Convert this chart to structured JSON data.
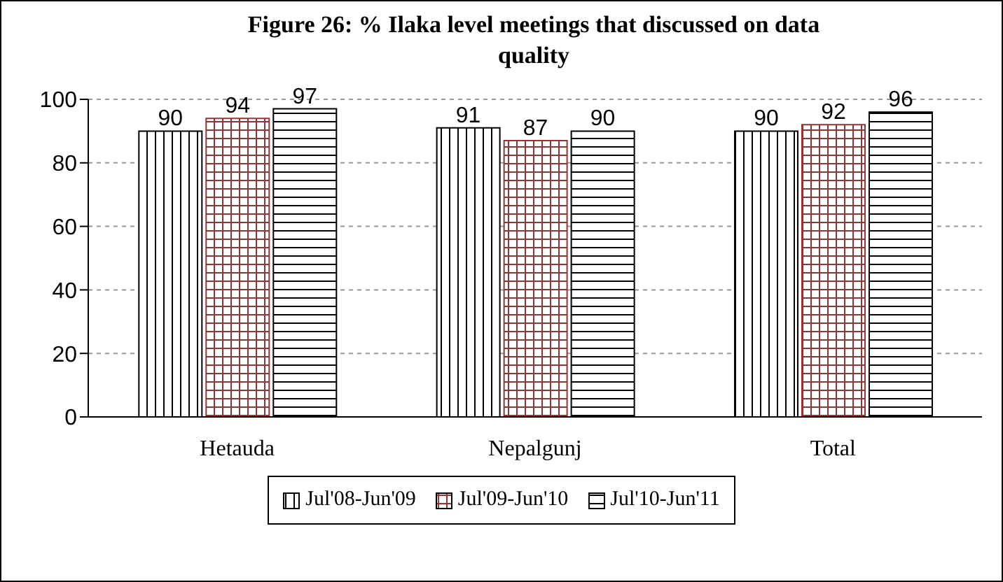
{
  "chart_data": {
    "type": "bar",
    "title": "Figure 26: % Ilaka level meetings that discussed on data quality",
    "categories": [
      "Hetauda",
      "Nepalgunj",
      "Total"
    ],
    "series": [
      {
        "name": "Jul'08-Jun'09",
        "color": "#000000",
        "values": [
          90,
          91,
          90
        ]
      },
      {
        "name": "Jul'09-Jun'10",
        "color": "#993333",
        "values": [
          94,
          87,
          92
        ]
      },
      {
        "name": "Jul'10-Jun'11",
        "color": "#000000",
        "values": [
          97,
          90,
          96
        ]
      }
    ],
    "ylim": [
      0,
      100
    ],
    "yticks": [
      0,
      20,
      40,
      60,
      80,
      100
    ],
    "grid": "y",
    "legend": "bottom",
    "data_labels": true
  }
}
